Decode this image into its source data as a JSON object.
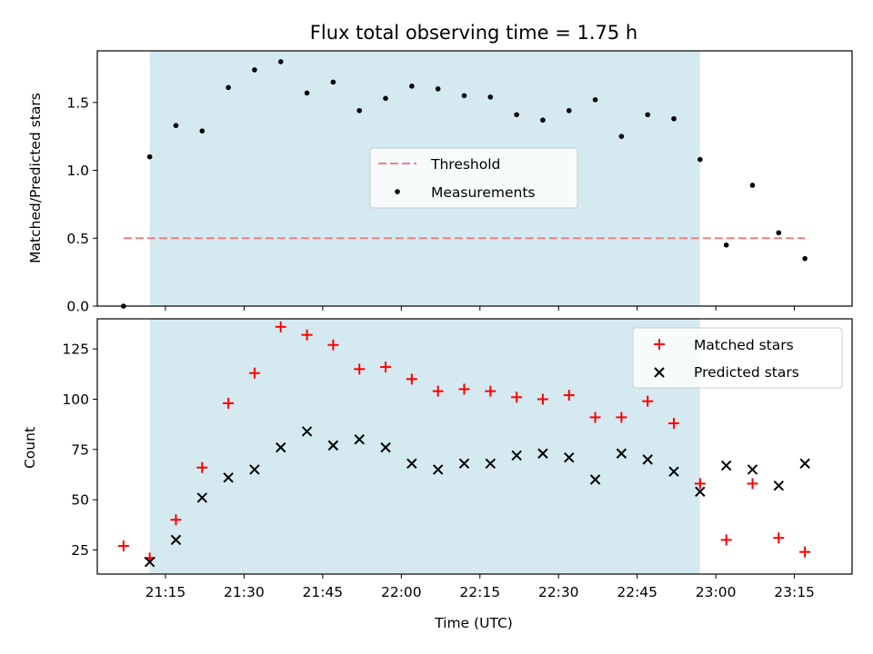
{
  "chart_data": [
    {
      "type": "scatter",
      "title": "Flux total observing time = 1.75 h",
      "xlabel": "",
      "ylabel": "Matched/Predicted stars",
      "ylim": [
        0,
        1.88
      ],
      "yticks": [
        "0.0",
        "0.5",
        "1.0",
        "1.5"
      ],
      "xlim": [
        "21:02",
        "23:26"
      ],
      "shaded_interval": [
        "21:12",
        "22:57"
      ],
      "shaded_color": "#d4eaf0",
      "legend_position": "center",
      "threshold": {
        "name": "Threshold",
        "value": 0.5,
        "x_range": [
          "21:07",
          "23:17"
        ],
        "color": "#f08080",
        "style": "dashed"
      },
      "series": [
        {
          "name": "Measurements",
          "marker": "dot",
          "color": "#000000",
          "x": [
            "21:07",
            "21:12",
            "21:17",
            "21:22",
            "21:27",
            "21:32",
            "21:37",
            "21:42",
            "21:47",
            "21:52",
            "21:57",
            "22:02",
            "22:07",
            "22:12",
            "22:17",
            "22:22",
            "22:27",
            "22:32",
            "22:37",
            "22:42",
            "22:47",
            "22:52",
            "22:57",
            "23:02",
            "23:07",
            "23:12",
            "23:17"
          ],
          "y": [
            0.0,
            1.1,
            1.33,
            1.29,
            1.61,
            1.74,
            1.8,
            1.57,
            1.65,
            1.44,
            1.53,
            1.62,
            1.6,
            1.55,
            1.54,
            1.41,
            1.37,
            1.44,
            1.52,
            1.25,
            1.41,
            1.38,
            1.08,
            0.45,
            0.89,
            0.54,
            0.35
          ]
        }
      ]
    },
    {
      "type": "scatter",
      "title": "",
      "xlabel": "Time (UTC)",
      "ylabel": "Count",
      "ylim": [
        13,
        140
      ],
      "yticks": [
        "25",
        "50",
        "75",
        "100",
        "125"
      ],
      "xlim": [
        "21:02",
        "23:26"
      ],
      "xticks": [
        "21:15",
        "21:30",
        "21:45",
        "22:00",
        "22:15",
        "22:30",
        "22:45",
        "23:00",
        "23:15"
      ],
      "shaded_interval": [
        "21:12",
        "22:57"
      ],
      "shaded_color": "#d4eaf0",
      "legend_position": "top-right",
      "series": [
        {
          "name": "Matched stars",
          "marker": "plus",
          "color": "#ff0000",
          "x": [
            "21:07",
            "21:12",
            "21:17",
            "21:22",
            "21:27",
            "21:32",
            "21:37",
            "21:42",
            "21:47",
            "21:52",
            "21:57",
            "22:02",
            "22:07",
            "22:12",
            "22:17",
            "22:22",
            "22:27",
            "22:32",
            "22:37",
            "22:42",
            "22:47",
            "22:52",
            "22:57",
            "23:02",
            "23:07",
            "23:12",
            "23:17"
          ],
          "y": [
            27,
            21,
            40,
            66,
            98,
            113,
            136,
            132,
            127,
            115,
            116,
            110,
            104,
            105,
            104,
            101,
            100,
            102,
            91,
            91,
            99,
            88,
            58,
            30,
            58,
            31,
            24
          ]
        },
        {
          "name": "Predicted stars",
          "marker": "x",
          "color": "#000000",
          "x": [
            "21:12",
            "21:17",
            "21:22",
            "21:27",
            "21:32",
            "21:37",
            "21:42",
            "21:47",
            "21:52",
            "21:57",
            "22:02",
            "22:07",
            "22:12",
            "22:17",
            "22:22",
            "22:27",
            "22:32",
            "22:37",
            "22:42",
            "22:47",
            "22:52",
            "22:57",
            "23:02",
            "23:07",
            "23:12",
            "23:17"
          ],
          "y": [
            19,
            30,
            51,
            61,
            65,
            76,
            84,
            77,
            80,
            76,
            68,
            65,
            68,
            68,
            72,
            73,
            71,
            60,
            73,
            70,
            64,
            54,
            67,
            65,
            57,
            68
          ]
        }
      ]
    }
  ]
}
